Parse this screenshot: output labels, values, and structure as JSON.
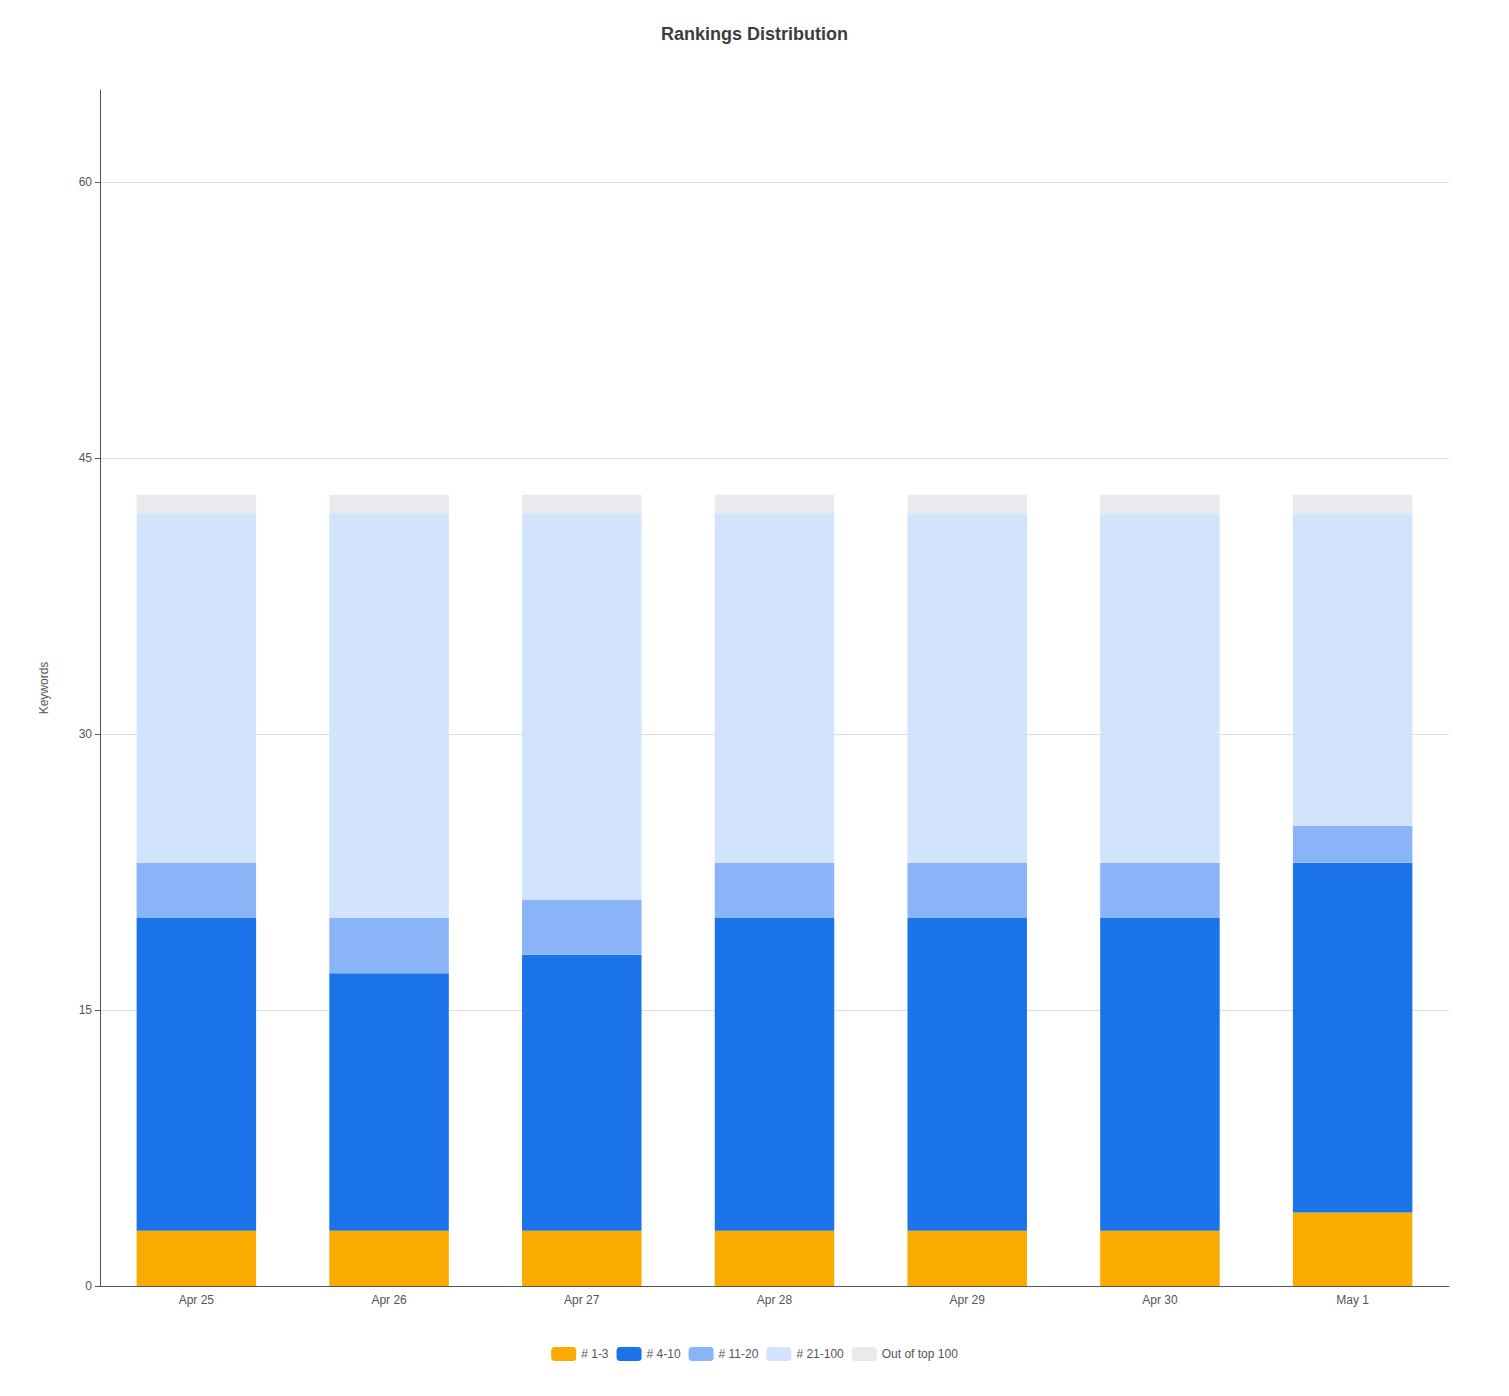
{
  "chart_data": {
    "type": "bar",
    "title": "Rankings Distribution",
    "y_label": "Keywords",
    "categories": [
      "Apr 25",
      "Apr 26",
      "Apr 27",
      "Apr 28",
      "Apr 29",
      "Apr 30",
      "May 1"
    ],
    "series": [
      {
        "name": "# 1-3",
        "color": "#f9ab00",
        "values": [
          3,
          3,
          3,
          3,
          3,
          3,
          4
        ]
      },
      {
        "name": "# 4-10",
        "color": "#1a73e8",
        "values": [
          17,
          14,
          15,
          17,
          17,
          17,
          19
        ]
      },
      {
        "name": "# 11-20",
        "color": "#8ab4f8",
        "values": [
          3,
          3,
          3,
          3,
          3,
          3,
          2
        ]
      },
      {
        "name": "# 21-100",
        "color": "#d2e3fc",
        "values": [
          19,
          22,
          21,
          19,
          19,
          19,
          17
        ]
      },
      {
        "name": "Out of top 100",
        "color": "#e8eaed",
        "values": [
          1,
          1,
          1,
          1,
          1,
          1,
          1
        ]
      }
    ],
    "stacked": true,
    "ylim": [
      0,
      65
    ],
    "yticks": [
      0,
      15,
      30,
      45,
      60
    ],
    "grid": true,
    "legend": "bottom"
  }
}
